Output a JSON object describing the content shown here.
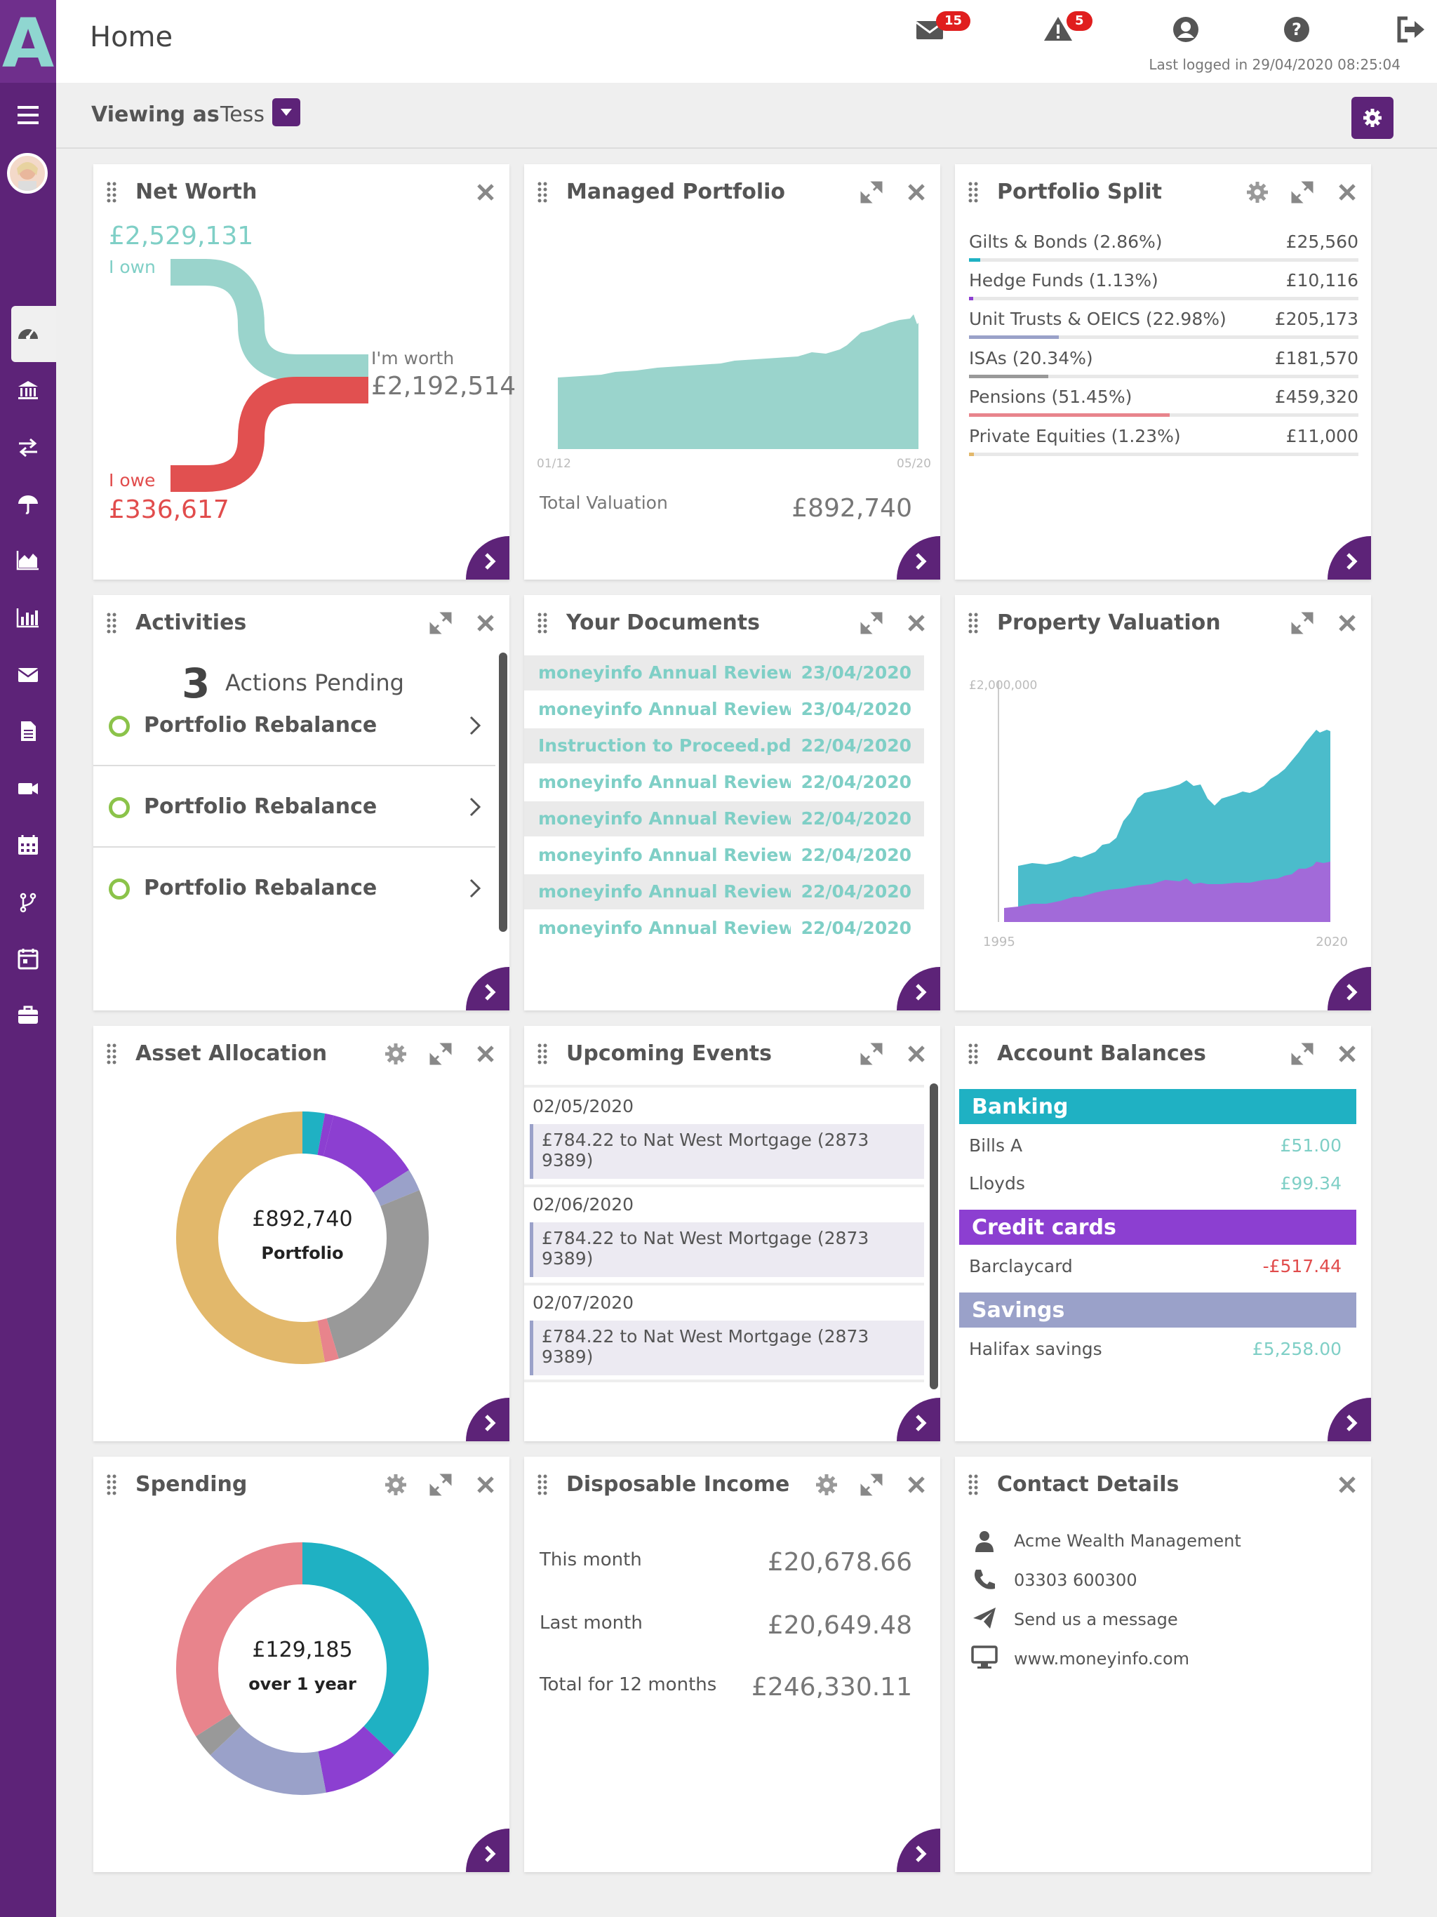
{
  "app": {
    "logo_letter": "A"
  },
  "header": {
    "title": "Home",
    "messages_count": "15",
    "alerts_count": "5",
    "last_logged": "Last logged in 29/04/2020 08:25:04"
  },
  "viewing": {
    "label": "Viewing as",
    "user": "Tess"
  },
  "sidebar": {
    "items": [
      "gauge-icon",
      "bank-icon",
      "transfer-icon",
      "umbrella-icon",
      "area-chart-icon",
      "bar-chart-icon",
      "mail-icon",
      "document-icon",
      "video-icon",
      "calendar-icon",
      "branch-icon",
      "calendar-check-icon",
      "briefcase-icon"
    ]
  },
  "net_worth": {
    "title": "Net Worth",
    "own_value": "£2,529,131",
    "own_label": "I own",
    "worth_label": "I'm worth",
    "worth_value": "£2,192,514",
    "owe_label": "I owe",
    "owe_value": "£336,617",
    "colors": {
      "own": "#9ad4cc",
      "owe": "#e15050"
    }
  },
  "managed_portfolio": {
    "title": "Managed Portfolio",
    "x_start": "01/12",
    "x_end": "05/20",
    "total_label": "Total Valuation",
    "total_value": "£892,740"
  },
  "portfolio_split": {
    "title": "Portfolio Split",
    "rows": [
      {
        "label": "Gilts & Bonds (2.86%)",
        "value": "£25,560",
        "pct": 2.86,
        "color": "#1fb1c3"
      },
      {
        "label": "Hedge Funds (1.13%)",
        "value": "£10,116",
        "pct": 1.13,
        "color": "#8c3fd1"
      },
      {
        "label": "Unit Trusts & OEICS (22.98%)",
        "value": "£205,173",
        "pct": 22.98,
        "color": "#9aa1c9"
      },
      {
        "label": "ISAs (20.34%)",
        "value": "£181,570",
        "pct": 20.34,
        "color": "#999999"
      },
      {
        "label": "Pensions (51.45%)",
        "value": "£459,320",
        "pct": 51.45,
        "color": "#e8848c"
      },
      {
        "label": "Private Equities (1.23%)",
        "value": "£11,000",
        "pct": 1.23,
        "color": "#e2b86b"
      }
    ]
  },
  "activities": {
    "title": "Activities",
    "count": "3",
    "pending_label": "Actions Pending",
    "items": [
      "Portfolio Rebalance",
      "Portfolio Rebalance",
      "Portfolio Rebalance"
    ]
  },
  "documents": {
    "title": "Your Documents",
    "items": [
      {
        "name": "moneyinfo Annual Review ...",
        "date": "23/04/2020"
      },
      {
        "name": "moneyinfo Annual Review ...",
        "date": "23/04/2020"
      },
      {
        "name": "Instruction to Proceed.pdf",
        "date": "22/04/2020"
      },
      {
        "name": "moneyinfo Annual Review ...",
        "date": "22/04/2020"
      },
      {
        "name": "moneyinfo Annual Review ...",
        "date": "22/04/2020"
      },
      {
        "name": "moneyinfo Annual Review ...",
        "date": "22/04/2020"
      },
      {
        "name": "moneyinfo Annual Review ...",
        "date": "22/04/2020"
      },
      {
        "name": "moneyinfo Annual Review ...",
        "date": "22/04/2020"
      }
    ]
  },
  "property_valuation": {
    "title": "Property Valuation",
    "y_label": "£2,000,000",
    "x_start": "1995",
    "x_end": "2020"
  },
  "asset_allocation": {
    "title": "Asset Allocation",
    "center_value": "£892,740",
    "center_label": "Portfolio",
    "segments": [
      {
        "pct": 2.86,
        "color": "#1fb1c3"
      },
      {
        "pct": 1.13,
        "color": "#8c3fd1"
      },
      {
        "pct": 12.0,
        "color": "#8c3fd1"
      },
      {
        "pct": 2.86,
        "color": "#9aa1c9"
      },
      {
        "pct": 26.5,
        "color": "#999999"
      },
      {
        "pct": 1.8,
        "color": "#e8848c"
      },
      {
        "pct": 52.85,
        "color": "#e2b86b"
      }
    ]
  },
  "upcoming_events": {
    "title": "Upcoming Events",
    "items": [
      {
        "date": "02/05/2020",
        "text1": "£784.22 to Nat West Mortgage (2873",
        "text2": "9389)"
      },
      {
        "date": "02/06/2020",
        "text1": "£784.22 to Nat West Mortgage (2873",
        "text2": "9389)"
      },
      {
        "date": "02/07/2020",
        "text1": "£784.22 to Nat West Mortgage (2873",
        "text2": "9389)"
      }
    ]
  },
  "account_balances": {
    "title": "Account Balances",
    "banking": {
      "label": "Banking",
      "color": "#1fb1c3",
      "rows": [
        {
          "name": "Bills A",
          "value": "£51.00"
        },
        {
          "name": "Lloyds",
          "value": "£99.34"
        }
      ]
    },
    "credit": {
      "label": "Credit cards",
      "color": "#8c3fd1",
      "rows": [
        {
          "name": "Barclaycard",
          "value": "-£517.44"
        }
      ]
    },
    "savings": {
      "label": "Savings",
      "color": "#9aa1c9",
      "rows": [
        {
          "name": "Halifax savings",
          "value": "£5,258.00"
        }
      ]
    }
  },
  "spending": {
    "title": "Spending",
    "center_value": "£129,185",
    "center_label": "over 1 year",
    "segments": [
      {
        "pct": 37,
        "color": "#1fb1c3"
      },
      {
        "pct": 10,
        "color": "#8c3fd1"
      },
      {
        "pct": 16,
        "color": "#9aa1c9"
      },
      {
        "pct": 3,
        "color": "#999999"
      },
      {
        "pct": 34,
        "color": "#e8848c"
      }
    ]
  },
  "disposable_income": {
    "title": "Disposable Income",
    "rows": [
      {
        "label": "This month",
        "value": "£20,678.66"
      },
      {
        "label": "Last month",
        "value": "£20,649.48"
      },
      {
        "label": "Total for 12 months",
        "value": "£246,330.11"
      }
    ]
  },
  "contact": {
    "title": "Contact Details",
    "company": "Acme Wealth Management",
    "phone": "03303 600300",
    "message": "Send us a message",
    "website": "www.moneyinfo.com"
  }
}
